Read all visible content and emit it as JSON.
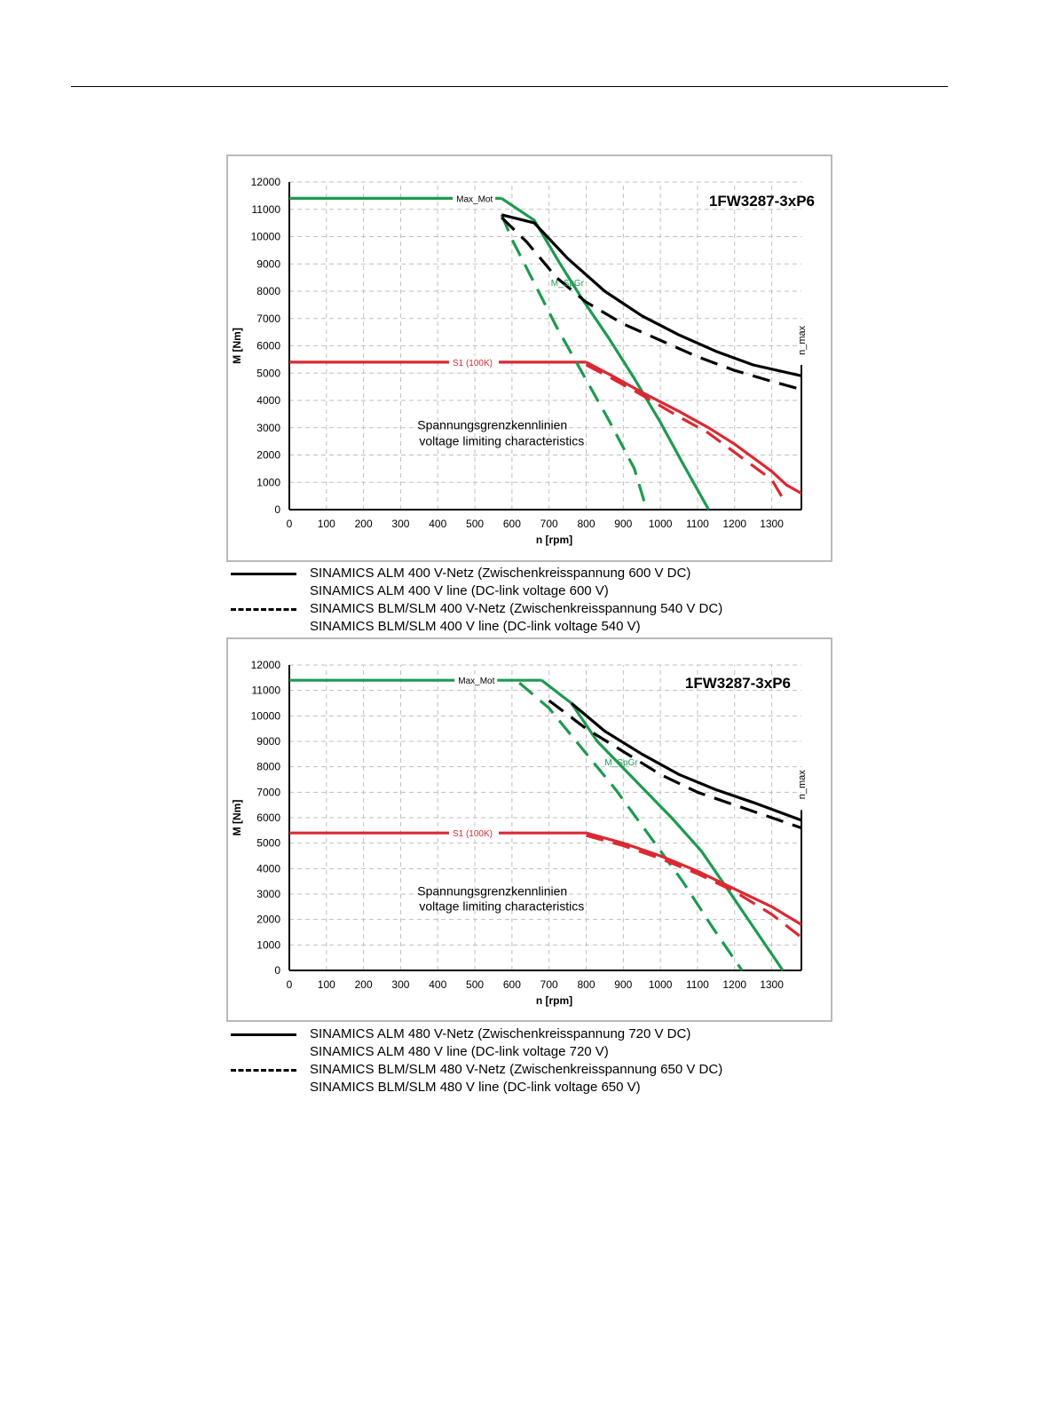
{
  "colors": {
    "alm": "#000000",
    "max_mot": "#1e9a50",
    "s1": "#d92a33",
    "grid": "#bfbfbf"
  },
  "chart_data": [
    {
      "type": "line",
      "title": "1FW3287-3xP6",
      "xlabel": "n [rpm]",
      "ylabel": "M [Nm]",
      "xlim": [
        0,
        1380
      ],
      "ylim": [
        0,
        12000
      ],
      "xticks": [
        "0",
        "100",
        "200",
        "300",
        "400",
        "500",
        "600",
        "700",
        "800",
        "900",
        "1000",
        "1100",
        "1200",
        "1300"
      ],
      "yticks": [
        "0",
        "1000",
        "2000",
        "3000",
        "4000",
        "5000",
        "6000",
        "7000",
        "8000",
        "9000",
        "10000",
        "11000",
        "12000"
      ],
      "grid": true,
      "annotations": {
        "max_mot": "Max_Mot",
        "s1": "S1 (100K)",
        "spgr": "M_SpGr",
        "nmax": "n_max",
        "text1": "Spannungsgrenzkennlinien",
        "text2": "voltage limiting characteristics"
      },
      "n_max": 1380,
      "series": [
        {
          "name": "Max_Mot",
          "color": "green",
          "style": "solid",
          "x": [
            0,
            572
          ],
          "y": [
            11400,
            11400
          ]
        },
        {
          "name": "S1 (100K)",
          "color": "red",
          "style": "solid",
          "x": [
            0,
            800
          ],
          "y": [
            5400,
            5400
          ]
        },
        {
          "name": "M_SpGr",
          "color": "green",
          "style": "solid",
          "x": [
            572,
            660,
            730,
            790,
            860,
            930,
            1000,
            1060,
            1130
          ],
          "y": [
            11400,
            10600,
            9000,
            7700,
            6300,
            4800,
            3200,
            1700,
            0
          ]
        },
        {
          "color": "green",
          "style": "dashed",
          "x": [
            572,
            600,
            660,
            720,
            790,
            860,
            930,
            963
          ],
          "y": [
            10800,
            9900,
            8300,
            6700,
            5000,
            3300,
            1500,
            0
          ]
        },
        {
          "color": "black",
          "style": "solid",
          "x": [
            572,
            660,
            750,
            850,
            950,
            1050,
            1150,
            1250,
            1380
          ],
          "y": [
            10800,
            10500,
            9200,
            8000,
            7100,
            6400,
            5800,
            5300,
            4900
          ]
        },
        {
          "color": "black",
          "style": "dashed",
          "x": [
            572,
            640,
            720,
            800,
            900,
            1000,
            1100,
            1200,
            1300,
            1380
          ],
          "y": [
            10700,
            9800,
            8500,
            7600,
            6800,
            6200,
            5600,
            5100,
            4700,
            4400
          ]
        },
        {
          "color": "red",
          "style": "solid",
          "x": [
            800,
            870,
            950,
            1050,
            1130,
            1200,
            1260,
            1300,
            1340,
            1380
          ],
          "y": [
            5400,
            4900,
            4300,
            3600,
            3000,
            2400,
            1800,
            1400,
            900,
            600
          ]
        },
        {
          "color": "red",
          "style": "dashed",
          "x": [
            800,
            870,
            950,
            1050,
            1130,
            1200,
            1260,
            1300,
            1335
          ],
          "y": [
            5300,
            4800,
            4200,
            3400,
            2800,
            2100,
            1500,
            1100,
            300
          ]
        }
      ]
    },
    {
      "type": "line",
      "title": "1FW3287-3xP6",
      "xlabel": "n [rpm]",
      "ylabel": "M [Nm]",
      "xlim": [
        0,
        1380
      ],
      "ylim": [
        0,
        12000
      ],
      "xticks": [
        "0",
        "100",
        "200",
        "300",
        "400",
        "500",
        "600",
        "700",
        "800",
        "900",
        "1000",
        "1100",
        "1200",
        "1300"
      ],
      "yticks": [
        "0",
        "1000",
        "2000",
        "3000",
        "4000",
        "5000",
        "6000",
        "7000",
        "8000",
        "9000",
        "10000",
        "11000",
        "12000"
      ],
      "grid": true,
      "annotations": {
        "max_mot": "Max_Mot",
        "s1": "S1 (100K)",
        "spgr": "M_SpGr",
        "nmax": "n_max",
        "text1": "Spannungsgrenzkennlinien",
        "text2": "voltage limiting characteristics"
      },
      "n_max": 1380,
      "series": [
        {
          "name": "Max_Mot",
          "color": "green",
          "style": "solid",
          "x": [
            0,
            680
          ],
          "y": [
            11400,
            11400
          ]
        },
        {
          "name": "S1 (100K)",
          "color": "red",
          "style": "solid",
          "x": [
            0,
            800
          ],
          "y": [
            5400,
            5400
          ]
        },
        {
          "name": "M_SpGr",
          "color": "green",
          "style": "solid",
          "x": [
            680,
            760,
            830,
            930,
            1030,
            1110,
            1190,
            1260,
            1330
          ],
          "y": [
            11400,
            10500,
            9000,
            7500,
            6000,
            4700,
            3000,
            1500,
            0
          ]
        },
        {
          "color": "green",
          "style": "dashed",
          "x": [
            620,
            700,
            790,
            880,
            970,
            1060,
            1140,
            1220
          ],
          "y": [
            11300,
            10300,
            8700,
            7100,
            5300,
            3500,
            1700,
            0
          ]
        },
        {
          "color": "black",
          "style": "solid",
          "x": [
            760,
            850,
            950,
            1050,
            1150,
            1250,
            1380
          ],
          "y": [
            10500,
            9400,
            8500,
            7700,
            7100,
            6600,
            5900
          ]
        },
        {
          "color": "black",
          "style": "dashed",
          "x": [
            700,
            800,
            900,
            1000,
            1100,
            1200,
            1300,
            1380
          ],
          "y": [
            10600,
            9500,
            8600,
            7700,
            7000,
            6500,
            6000,
            5600
          ]
        },
        {
          "color": "red",
          "style": "solid",
          "x": [
            800,
            900,
            1000,
            1100,
            1200,
            1300,
            1380
          ],
          "y": [
            5400,
            5000,
            4500,
            3900,
            3200,
            2500,
            1800
          ]
        },
        {
          "color": "red",
          "style": "dashed",
          "x": [
            800,
            900,
            1000,
            1100,
            1200,
            1300,
            1380
          ],
          "y": [
            5300,
            4900,
            4400,
            3800,
            3100,
            2200,
            1300
          ]
        }
      ]
    }
  ],
  "legends": [
    {
      "solid_line1": "SINAMICS ALM  400 V-Netz (Zwischenkreisspannung 600 V DC)",
      "solid_line2": "SINAMICS ALM  400 V line (DC-link voltage 600 V)",
      "dashed_line1": "SINAMICS BLM/SLM  400 V-Netz (Zwischenkreisspannung 540 V DC)",
      "dashed_line2": "SINAMICS BLM/SLM  400 V line (DC-link voltage 540 V)"
    },
    {
      "solid_line1": "SINAMICS ALM  480 V-Netz (Zwischenkreisspannung 720 V DC)",
      "solid_line2": "SINAMICS ALM  480 V line (DC-link voltage 720 V)",
      "dashed_line1": "SINAMICS BLM/SLM  480 V-Netz (Zwischenkreisspannung 650 V DC)",
      "dashed_line2": "SINAMICS BLM/SLM  480 V line (DC-link voltage 650 V)"
    }
  ]
}
